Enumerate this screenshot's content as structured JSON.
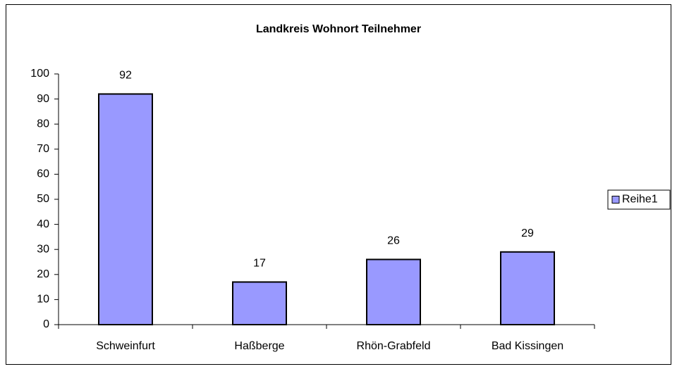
{
  "chart_data": {
    "type": "bar",
    "title": "Landkreis Wohnort Teilnehmer",
    "categories": [
      "Schweinfurt",
      "Haßberge",
      "Rhön-Grabfeld",
      "Bad Kissingen"
    ],
    "series": [
      {
        "name": "Reihe1",
        "color": "#9999ff",
        "values": [
          92,
          17,
          26,
          29
        ]
      }
    ],
    "ylim": [
      0,
      100
    ],
    "yticks": [
      0,
      10,
      20,
      30,
      40,
      50,
      60,
      70,
      80,
      90,
      100
    ],
    "grid": false,
    "legend": "right",
    "data_labels": true
  }
}
